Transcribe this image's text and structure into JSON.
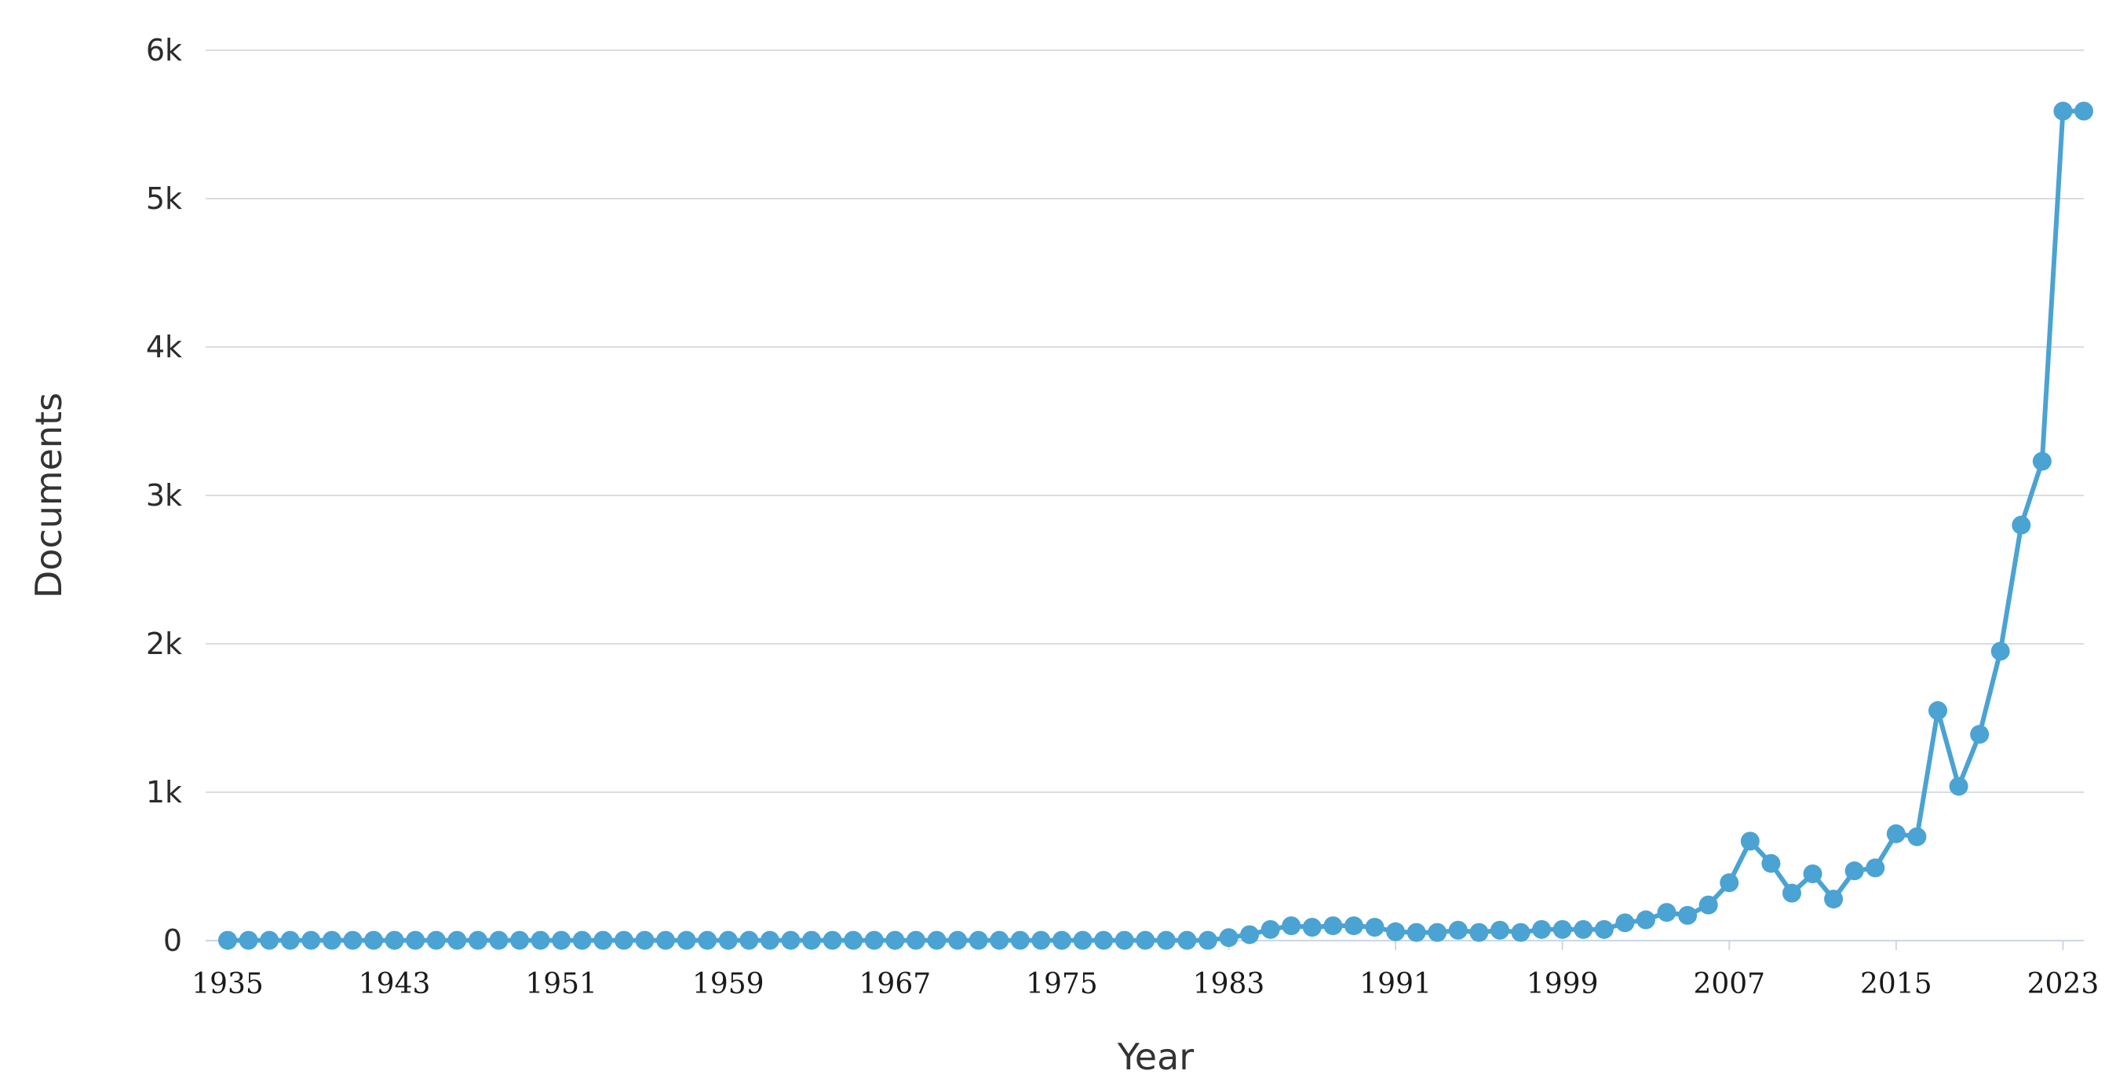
{
  "chart_data": {
    "type": "line",
    "xlabel": "Year",
    "ylabel": "Documents",
    "xlim": [
      1935,
      2024
    ],
    "ylim": [
      0,
      6000
    ],
    "x_ticks": [
      1935,
      1943,
      1951,
      1959,
      1967,
      1975,
      1983,
      1991,
      1999,
      2007,
      2015,
      2023
    ],
    "y_ticks": [
      {
        "value": 0,
        "label": "0"
      },
      {
        "value": 1000,
        "label": "1k"
      },
      {
        "value": 2000,
        "label": "2k"
      },
      {
        "value": 3000,
        "label": "3k"
      },
      {
        "value": 4000,
        "label": "4k"
      },
      {
        "value": 5000,
        "label": "5k"
      },
      {
        "value": 6000,
        "label": "6k"
      }
    ],
    "grid": true,
    "legend": "none",
    "colors": {
      "series": "#4aa3d3",
      "grid": "#d9dde2",
      "axis": "#cbd7e6"
    },
    "series": [
      {
        "x": [
          1935,
          1936,
          1937,
          1938,
          1939,
          1940,
          1941,
          1942,
          1943,
          1944,
          1945,
          1946,
          1947,
          1948,
          1949,
          1950,
          1951,
          1952,
          1953,
          1954,
          1955,
          1956,
          1957,
          1958,
          1959,
          1960,
          1961,
          1962,
          1963,
          1964,
          1965,
          1966,
          1967,
          1968,
          1969,
          1970,
          1971,
          1972,
          1973,
          1974,
          1975,
          1976,
          1977,
          1978,
          1979,
          1980,
          1981,
          1982,
          1983,
          1984,
          1985,
          1986,
          1987,
          1988,
          1989,
          1990,
          1991,
          1992,
          1993,
          1994,
          1995,
          1996,
          1997,
          1998,
          1999,
          2000,
          2001,
          2002,
          2003,
          2004,
          2005,
          2006,
          2007,
          2008,
          2009,
          2010,
          2011,
          2012,
          2013,
          2014,
          2015,
          2016,
          2017,
          2018,
          2019,
          2020,
          2021,
          2022,
          2023,
          2024
        ],
        "values": [
          2,
          2,
          2,
          2,
          2,
          2,
          2,
          2,
          2,
          2,
          2,
          2,
          2,
          2,
          2,
          2,
          2,
          2,
          2,
          2,
          2,
          2,
          2,
          2,
          2,
          2,
          2,
          2,
          2,
          2,
          2,
          2,
          2,
          2,
          2,
          2,
          2,
          2,
          2,
          2,
          2,
          2,
          2,
          2,
          2,
          2,
          2,
          2,
          20,
          40,
          75,
          100,
          90,
          100,
          100,
          90,
          60,
          55,
          55,
          70,
          55,
          70,
          55,
          75,
          75,
          75,
          75,
          120,
          140,
          190,
          170,
          240,
          390,
          670,
          520,
          320,
          450,
          280,
          470,
          490,
          720,
          700,
          1550,
          1040,
          1390,
          1950,
          2800,
          3230,
          5590,
          5590
        ]
      }
    ]
  }
}
